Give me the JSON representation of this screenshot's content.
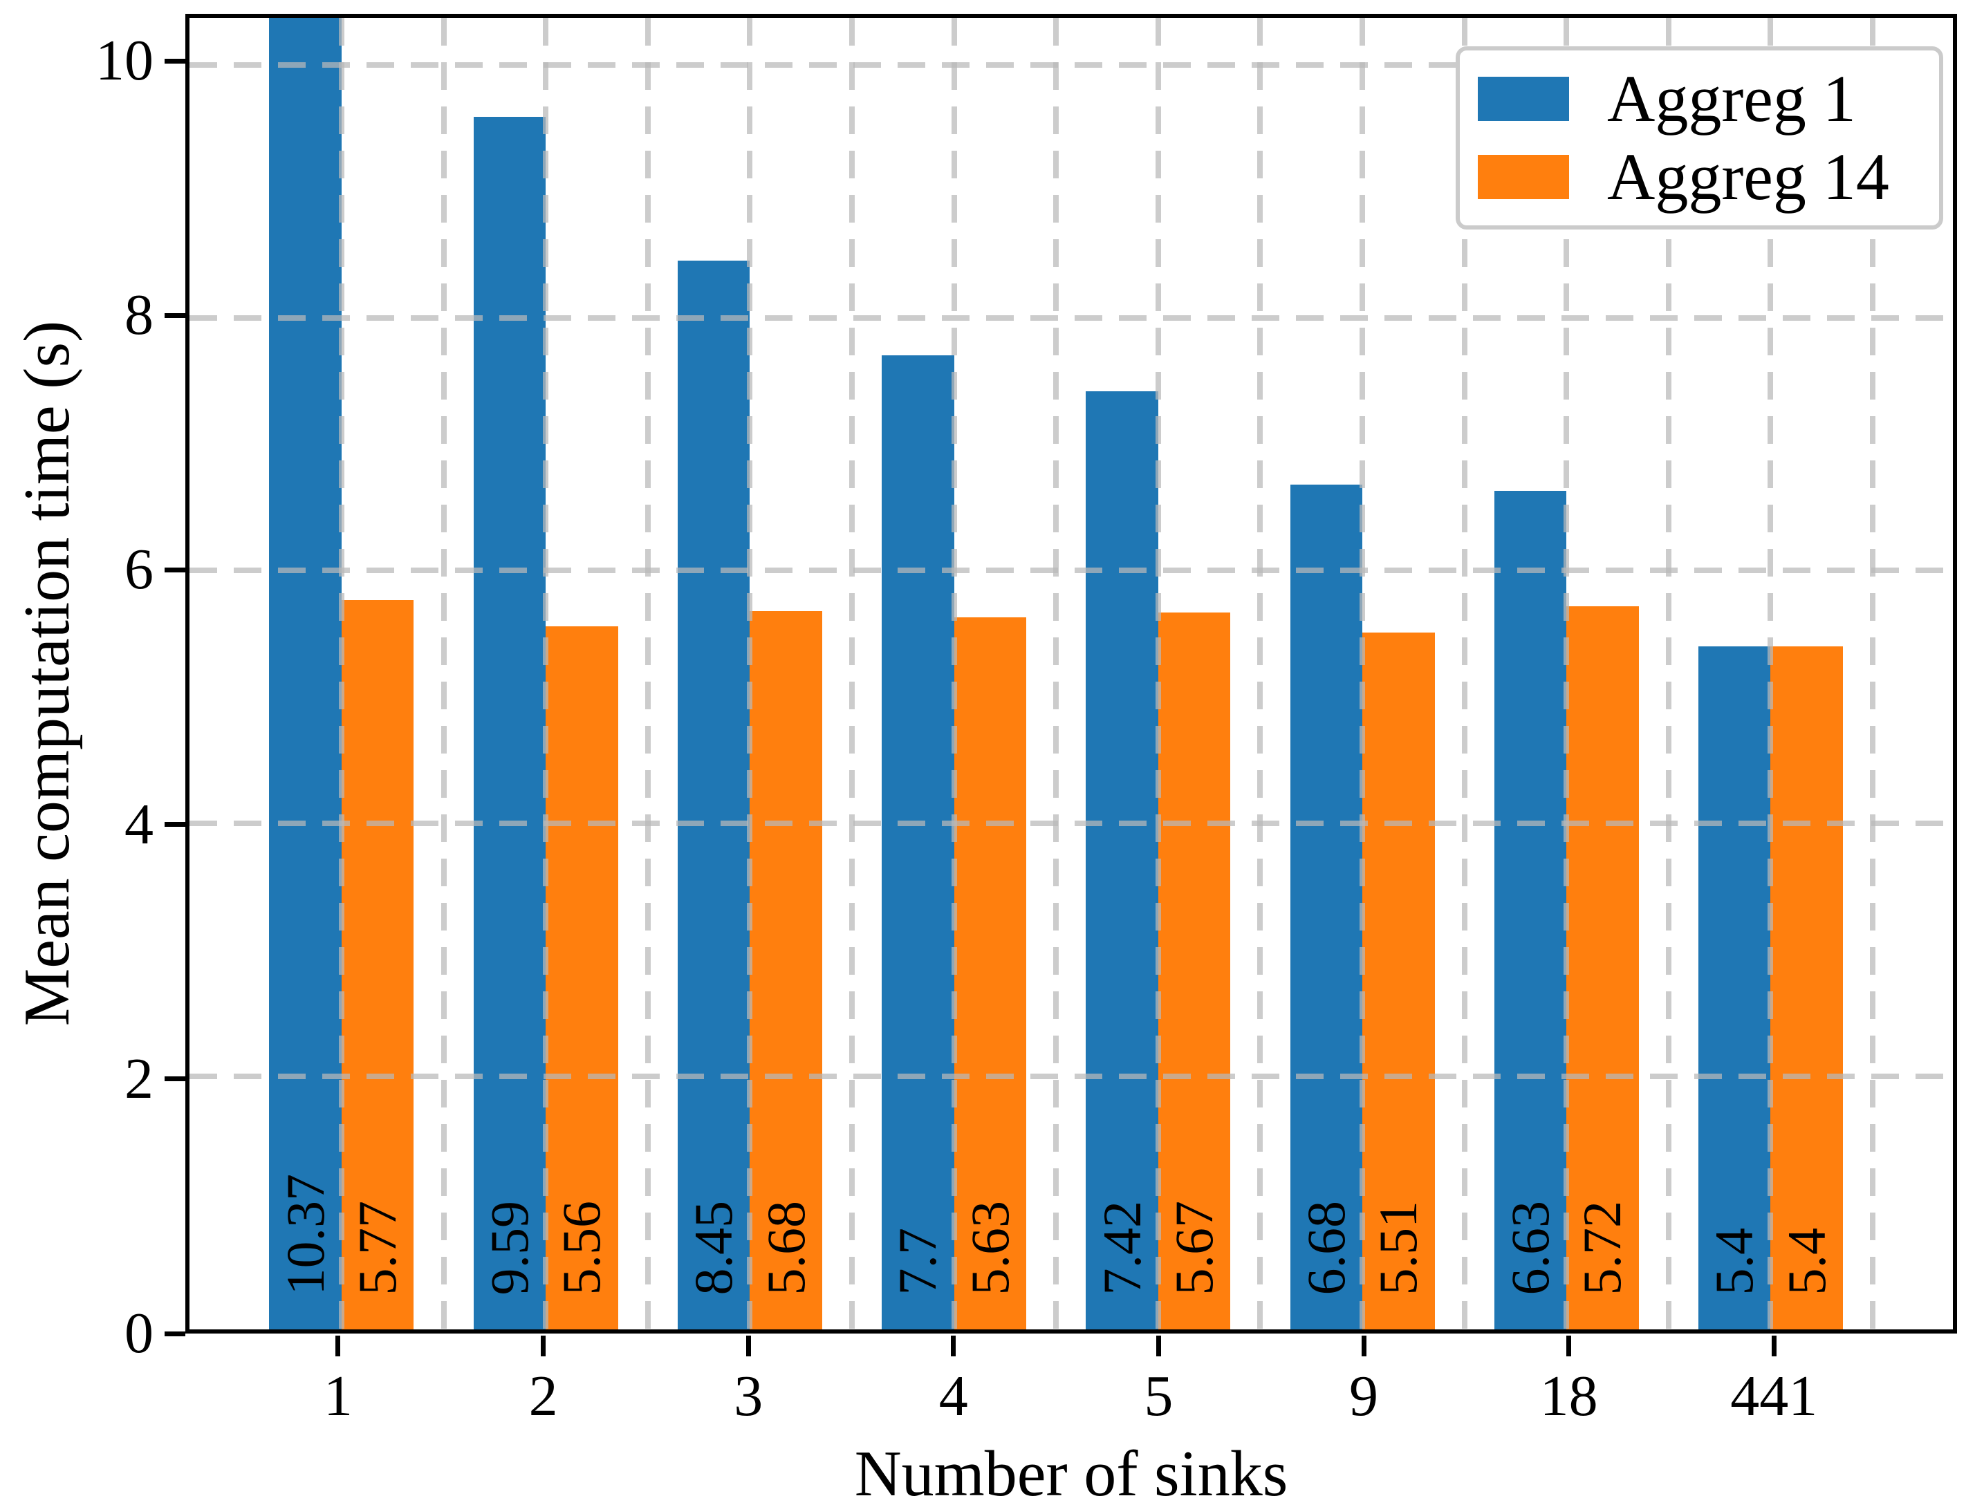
{
  "chart_data": {
    "type": "bar",
    "title": "",
    "xlabel": "Number of sinks",
    "ylabel": "Mean computation time (s)",
    "categories": [
      "1",
      "2",
      "3",
      "4",
      "5",
      "9",
      "18",
      "441"
    ],
    "series": [
      {
        "name": "Aggreg 1",
        "color": "#1f77b4",
        "values": [
          10.37,
          9.59,
          8.45,
          7.7,
          7.42,
          6.68,
          6.63,
          5.4
        ],
        "labels": [
          "10.37",
          "9.59",
          "8.45",
          "7.7",
          "7.42",
          "6.68",
          "6.63",
          "5.4"
        ]
      },
      {
        "name": "Aggreg 14",
        "color": "#ff7f0e",
        "values": [
          5.77,
          5.56,
          5.68,
          5.63,
          5.67,
          5.51,
          5.72,
          5.4
        ],
        "labels": [
          "5.77",
          "5.56",
          "5.68",
          "5.63",
          "5.67",
          "5.51",
          "5.72",
          "5.4"
        ]
      }
    ],
    "yticks": [
      0,
      2,
      4,
      6,
      8,
      10
    ],
    "ytick_labels": [
      "0",
      "2",
      "4",
      "6",
      "8",
      "10"
    ],
    "ylim": [
      0,
      10.37
    ],
    "bar_value_labels_rotated": true,
    "grid": {
      "style": "dashed",
      "color": "#c9c9c9",
      "minor_vertical_between_groups": true
    },
    "legend": {
      "position": "upper right",
      "entries": [
        "Aggreg 1",
        "Aggreg 14"
      ]
    }
  }
}
